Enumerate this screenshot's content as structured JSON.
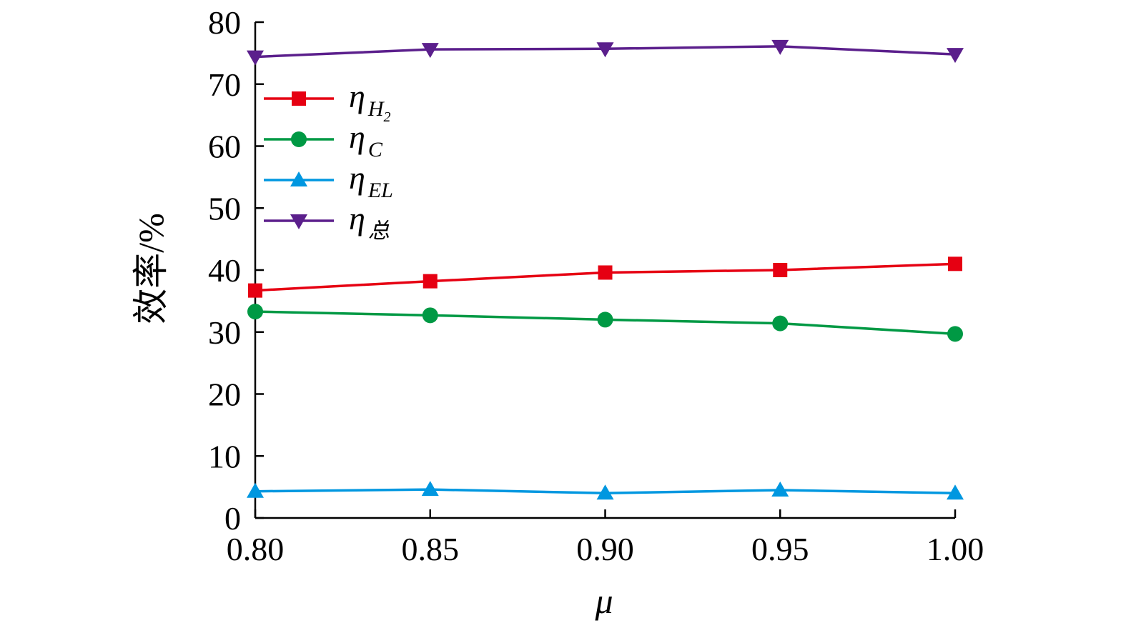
{
  "chart_data": {
    "type": "line",
    "x": [
      0.8,
      0.85,
      0.9,
      0.95,
      1.0
    ],
    "x_tick_labels": [
      "0.80",
      "0.85",
      "0.90",
      "0.95",
      "1.00"
    ],
    "y_ticks": [
      0,
      10,
      20,
      30,
      40,
      50,
      60,
      70,
      80
    ],
    "xlim": [
      0.8,
      1.0
    ],
    "ylim": [
      0,
      80
    ],
    "xlabel": "μ",
    "ylabel": "效率/%",
    "grid": false,
    "legend_position": "upper-left",
    "series": [
      {
        "name": "η",
        "subscript": "H",
        "subsubscript": "2",
        "color": "#e60012",
        "marker": "square",
        "values": [
          36.7,
          38.2,
          39.6,
          40.0,
          41.0
        ]
      },
      {
        "name": "η",
        "subscript": "C",
        "subsubscript": "",
        "color": "#009944",
        "marker": "circle",
        "values": [
          33.3,
          32.7,
          32.0,
          31.4,
          29.7
        ]
      },
      {
        "name": "η",
        "subscript": "EL",
        "subsubscript": "",
        "color": "#0097e0",
        "marker": "triangle-up",
        "values": [
          4.3,
          4.6,
          4.0,
          4.5,
          4.0
        ]
      },
      {
        "name": "η",
        "subscript": "总",
        "subsubscript": "",
        "color": "#5b1f8c",
        "marker": "triangle-down",
        "values": [
          74.4,
          75.6,
          75.7,
          76.1,
          74.8
        ]
      }
    ]
  }
}
